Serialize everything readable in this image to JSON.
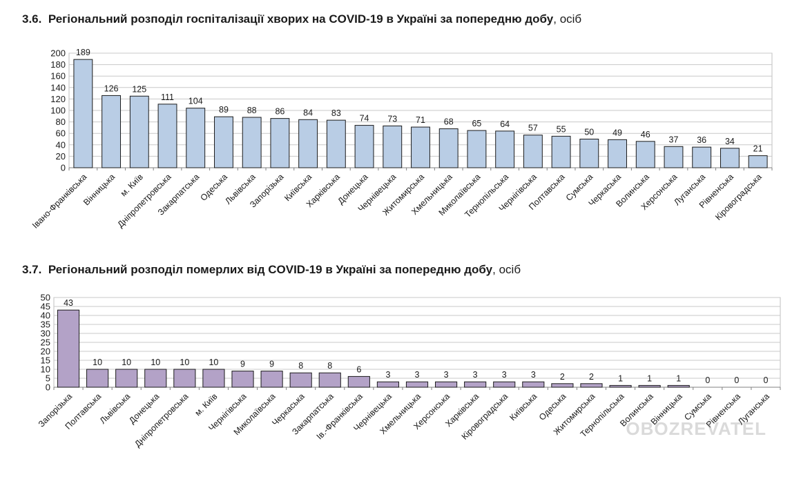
{
  "headings": [
    {
      "number": "3.6.",
      "title": "Регіональний розподіл госпіталізації хворих на COVID-19 в Україні за попередню добу",
      "unit": ", осіб"
    },
    {
      "number": "3.7.",
      "title": "Регіональний розподіл померлих від COVID-19 в Україні за попередню добу",
      "unit": ", осіб"
    }
  ],
  "watermark": "OBOZREVATEL",
  "chart_data": [
    {
      "type": "bar",
      "title": "Регіональний розподіл госпіталізації хворих на COVID-19 в Україні за попередню добу",
      "categories": [
        "Івано-Франківська",
        "Вінницька",
        "м. Київ",
        "Дніпропетровська",
        "Закарпатська",
        "Одеська",
        "Львівська",
        "Запорізька",
        "Київська",
        "Харківська",
        "Донецька",
        "Чернівецька",
        "Житомирська",
        "Хмельницька",
        "Миколаївська",
        "Тернопільська",
        "Чернігівська",
        "Полтавська",
        "Сумська",
        "Черкаська",
        "Волинська",
        "Херсонська",
        "Луганська",
        "Рівненська",
        "Кіровоградська"
      ],
      "values": [
        189,
        126,
        125,
        111,
        104,
        89,
        88,
        86,
        84,
        83,
        74,
        73,
        71,
        68,
        65,
        64,
        57,
        55,
        50,
        49,
        46,
        37,
        36,
        34,
        21
      ],
      "ylim": [
        0,
        200
      ],
      "yticks": [
        0,
        20,
        40,
        60,
        80,
        100,
        120,
        140,
        160,
        180,
        200
      ],
      "grid": true,
      "color": "#b9cde5",
      "data_labels": true
    },
    {
      "type": "bar",
      "title": "Регіональний розподіл померлих від COVID-19 в Україні за попередню добу",
      "categories": [
        "Запорізька",
        "Полтавська",
        "Львівська",
        "Донецька",
        "Дніпропетровська",
        "м. Київ",
        "Чернігівська",
        "Миколаївська",
        "Черкаська",
        "Закарпатська",
        "Ів.-Франківська",
        "Чернівецька",
        "Хмельницька",
        "Херсонська",
        "Харківська",
        "Кіровоградська",
        "Київська",
        "Одеська",
        "Житомирська",
        "Тернопільська",
        "Волинська",
        "Вінницька",
        "Сумська",
        "Рівненська",
        "Луганська"
      ],
      "values": [
        43,
        10,
        10,
        10,
        10,
        10,
        9,
        9,
        8,
        8,
        6,
        3,
        3,
        3,
        3,
        3,
        3,
        2,
        2,
        1,
        1,
        1,
        0,
        0,
        0
      ],
      "ylim": [
        0,
        50
      ],
      "yticks": [
        0,
        5,
        10,
        15,
        20,
        25,
        30,
        35,
        40,
        45,
        50
      ],
      "grid": true,
      "color": "#b3a2c7",
      "data_labels": true
    }
  ]
}
